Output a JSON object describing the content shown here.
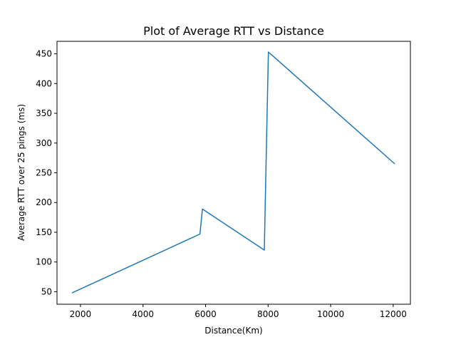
{
  "chart_data": {
    "type": "line",
    "title": "Plot of Average RTT vs Distance",
    "xlabel": "Distance(Km)",
    "ylabel": "Average RTT over 25 pings (ms)",
    "xlim": [
      1250,
      12550
    ],
    "ylim": [
      29,
      471
    ],
    "xticks": [
      2000,
      4000,
      6000,
      8000,
      10000,
      12000
    ],
    "yticks": [
      50,
      100,
      150,
      200,
      250,
      300,
      350,
      400,
      450
    ],
    "grid": false,
    "series": [
      {
        "color": "#1f77b4",
        "x": [
          1730,
          5820,
          5900,
          7880,
          7910,
          8010,
          12050
        ],
        "y": [
          48,
          147,
          189,
          120,
          200,
          453,
          265
        ]
      }
    ]
  }
}
